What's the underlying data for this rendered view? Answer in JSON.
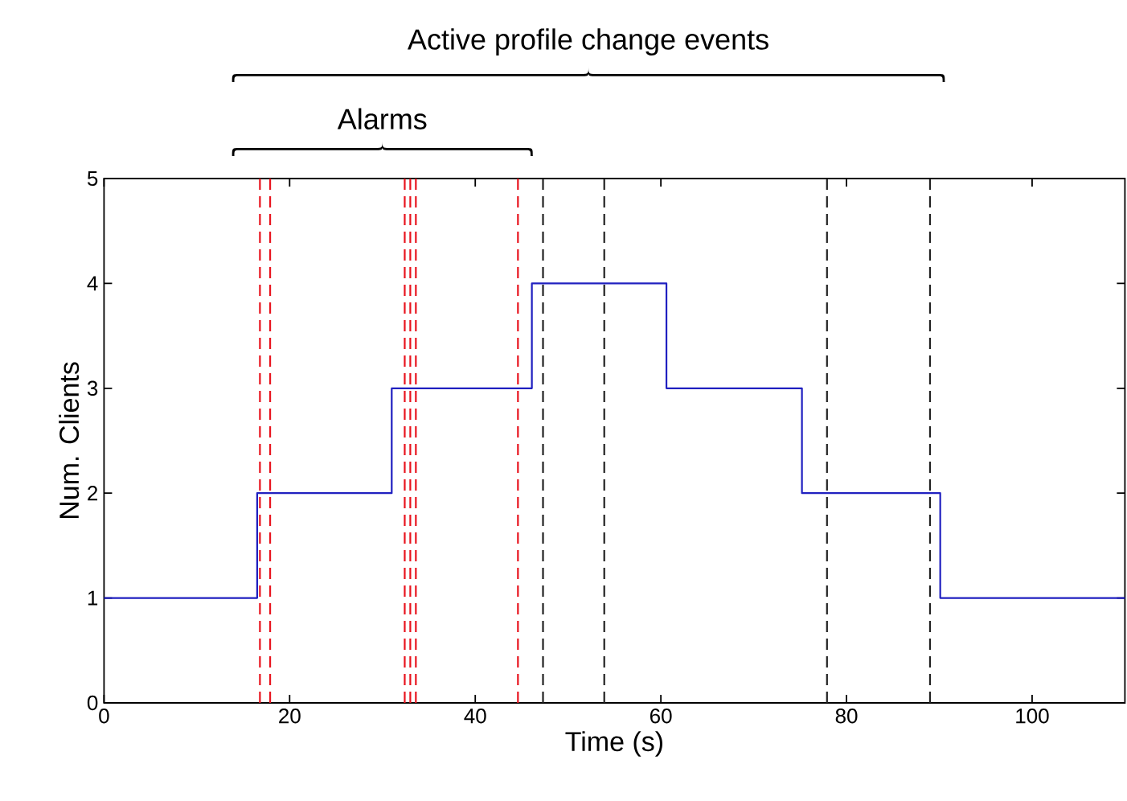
{
  "chart_data": {
    "type": "step",
    "xlabel": "Time (s)",
    "ylabel": "Num. Clients",
    "x": [
      0,
      16.5,
      31.0,
      46.1,
      60.6,
      75.2,
      90.1,
      110
    ],
    "series": [
      {
        "color": "#2020c0",
        "values": [
          1,
          2,
          3,
          4,
          3,
          2,
          1,
          1
        ]
      }
    ],
    "xlim": [
      0,
      110
    ],
    "xticks": [
      0,
      20,
      40,
      60,
      80,
      100
    ],
    "ylim": [
      0,
      5
    ],
    "yticks": [
      0,
      1,
      2,
      3,
      4,
      5
    ],
    "grid": false,
    "marker": "none",
    "line_style": "solid",
    "ref_lines": [
      {
        "axis": "x",
        "value": 16.8,
        "color": "#e8141e",
        "line_style": "dashed"
      },
      {
        "axis": "x",
        "value": 17.9,
        "color": "#e8141e",
        "line_style": "dashed"
      },
      {
        "axis": "x",
        "value": 32.4,
        "color": "#e8141e",
        "line_style": "dashed"
      },
      {
        "axis": "x",
        "value": 33.0,
        "color": "#e8141e",
        "line_style": "dashed"
      },
      {
        "axis": "x",
        "value": 33.6,
        "color": "#e8141e",
        "line_style": "dashed"
      },
      {
        "axis": "x",
        "value": 44.6,
        "color": "#e8141e",
        "line_style": "dashed"
      },
      {
        "axis": "x",
        "value": 47.3,
        "color": "#222222",
        "line_style": "dashed"
      },
      {
        "axis": "x",
        "value": 53.9,
        "color": "#222222",
        "line_style": "dashed"
      },
      {
        "axis": "x",
        "value": 77.9,
        "color": "#222222",
        "line_style": "dashed"
      },
      {
        "axis": "x",
        "value": 89.0,
        "color": "#222222",
        "line_style": "dashed"
      }
    ],
    "annotations": [
      "Active profile change events",
      "Alarms"
    ]
  }
}
